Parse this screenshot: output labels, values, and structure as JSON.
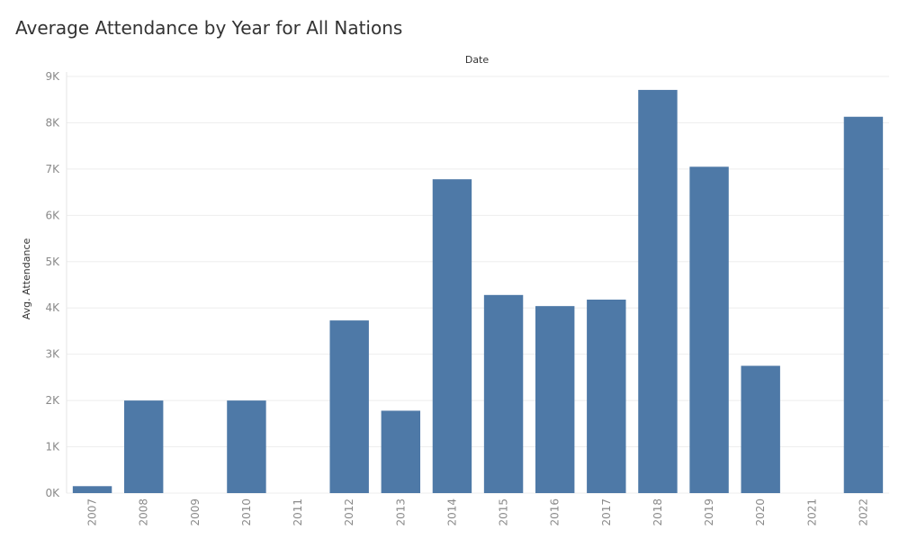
{
  "chart_data": {
    "type": "bar",
    "title": "Average Attendance by Year for All Nations",
    "xlabel": "Date",
    "ylabel": "Avg. Attendance",
    "categories": [
      "2007",
      "2008",
      "2009",
      "2010",
      "2011",
      "2012",
      "2013",
      "2014",
      "2015",
      "2016",
      "2017",
      "2018",
      "2019",
      "2020",
      "2021",
      "2022"
    ],
    "values": [
      150,
      2000,
      null,
      2000,
      null,
      3730,
      1780,
      6780,
      4280,
      4040,
      4180,
      8710,
      7050,
      2750,
      null,
      8130
    ],
    "ylim": [
      0,
      9000
    ],
    "yticks": [
      0,
      1000,
      2000,
      3000,
      4000,
      5000,
      6000,
      7000,
      8000,
      9000
    ],
    "ytick_labels": [
      "0K",
      "1K",
      "2K",
      "3K",
      "4K",
      "5K",
      "6K",
      "7K",
      "8K",
      "9K"
    ],
    "grid": true,
    "bar_color": "#4e79a7",
    "grid_color": "#eeeeee"
  }
}
